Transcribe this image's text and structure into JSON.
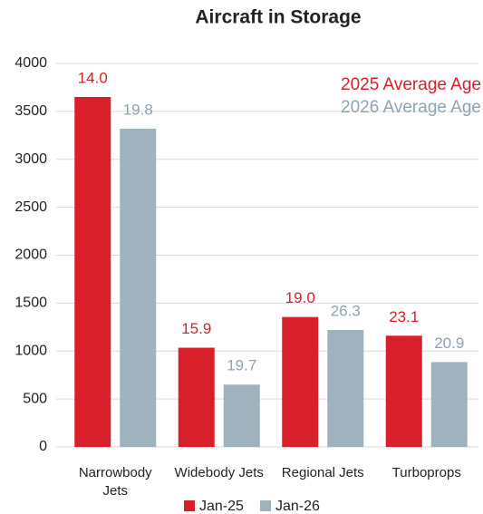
{
  "chart_data": {
    "type": "bar",
    "title": "Aircraft in Storage",
    "categories": [
      "Narrowbody Jets",
      "Widebody Jets",
      "Regional Jets",
      "Turboprops"
    ],
    "series": [
      {
        "name": "Jan-25",
        "color": "#d7202a",
        "values": [
          3650,
          1035,
          1355,
          1160
        ],
        "age_labels": [
          "14.0",
          "15.9",
          "19.0",
          "23.1"
        ]
      },
      {
        "name": "Jan-26",
        "color": "#9fb2be",
        "values": [
          3320,
          650,
          1220,
          885
        ],
        "age_labels": [
          "19.8",
          "19.7",
          "26.3",
          "20.9"
        ]
      }
    ],
    "annotations": [
      {
        "text": "2025 Average Age",
        "color": "#d7202a"
      },
      {
        "text": "2026 Average Age",
        "color": "#8fa3b0"
      }
    ],
    "ylim": [
      0,
      4000
    ],
    "yticks": [
      0,
      500,
      1000,
      1500,
      2000,
      2500,
      3000,
      3500,
      4000
    ],
    "grid": true,
    "legend": "bottom"
  }
}
